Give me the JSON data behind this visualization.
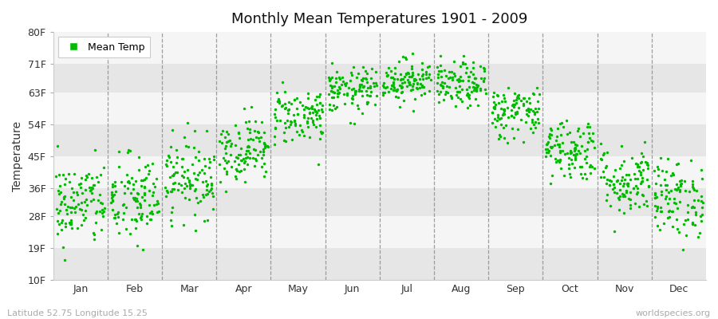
{
  "title": "Monthly Mean Temperatures 1901 - 2009",
  "ylabel": "Temperature",
  "dot_color": "#00bb00",
  "dot_size": 6,
  "background_color": "#ffffff",
  "plot_bg_color": "#f2f2f2",
  "band_colors": [
    "#e6e6e6",
    "#f5f5f5"
  ],
  "yticks": [
    10,
    19,
    28,
    36,
    45,
    54,
    63,
    71,
    80
  ],
  "ylim": [
    10,
    80
  ],
  "months": [
    "Jan",
    "Feb",
    "Mar",
    "Apr",
    "May",
    "Jun",
    "Jul",
    "Aug",
    "Sep",
    "Oct",
    "Nov",
    "Dec"
  ],
  "footer_left": "Latitude 52.75 Longitude 15.25",
  "footer_right": "worldspecies.org",
  "legend_label": "Mean Temp",
  "monthly_means_f": [
    31.5,
    32.5,
    39.0,
    47.0,
    56.5,
    63.5,
    66.5,
    65.0,
    57.5,
    47.0,
    38.0,
    33.0
  ],
  "monthly_stds_f": [
    6.0,
    6.5,
    5.5,
    4.5,
    4.0,
    3.2,
    3.0,
    3.2,
    3.8,
    4.5,
    5.0,
    5.5
  ]
}
